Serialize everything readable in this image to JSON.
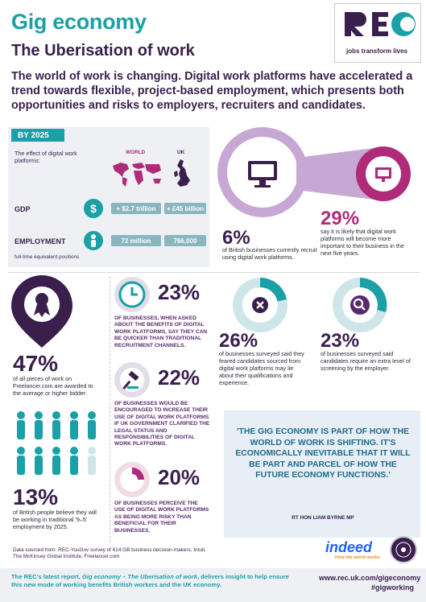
{
  "header": {
    "title": "Gig economy",
    "subtitle": "The Uberisation of work",
    "logo_text": "REC",
    "logo_tagline": "jobs transform lives",
    "intro": "The world of work is changing. Digital work platforms have accelerated a trend towards flexible, project-based employment, which presents both opportunities and risks to employers, recruiters and candidates."
  },
  "by2025": {
    "tag": "BY 2025",
    "effect_label": "The effect of digital work platforms:",
    "col_world": "WORLD",
    "col_uk": "UK",
    "gdp_label": "GDP",
    "gdp_world": "+ $2.7 trillion",
    "gdp_uk": "+ £45 billion",
    "employment_label": "EMPLOYMENT",
    "employment_sub": "full-time equivalent positions",
    "emp_world": "72 million",
    "emp_uk": "766,000"
  },
  "top_right": {
    "pct1": "6%",
    "pct1_text": "of British businesses currently recruit using digital work platforms.",
    "pct2": "29%",
    "pct2_text": "say it is likely that digital work platforms will become more important to their business in the next five years."
  },
  "left_col": {
    "pct1": "47%",
    "pct1_text": "of all pieces of work on Freelancer.com are awarded to the average or higher bidder.",
    "pct2": "13%",
    "pct2_text": "of British people believe they will be working in traditional '9–5' employment by 2025."
  },
  "mid_col": {
    "pct1": "23%",
    "pct1_text": "OF BUSINESSES, WHEN ASKED ABOUT THE BENEFITS OF DIGITAL WORK PLATFORMS, SAY THEY CAN BE QUICKER THAN TRADITIONAL RECRUITMENT CHANNELS.",
    "pct2": "22%",
    "pct2_text": "OF BUSINESSES WOULD BE ENCOURAGED TO INCREASE THEIR USE OF DIGITAL WORK PLATFORMS IF UK GOVERNMENT CLARIFIED THE LEGAL STATUS AND RESPONSIBILITIES OF DIGITAL WORK PLATFORMS.",
    "pct3": "20%",
    "pct3_text": "OF BUSINESSES PERCEIVE THE USE OF DIGITAL WORK PLATFORMS AS BEING MORE RISKY THAN BENEFICIAL FOR THEIR BUSINESSES."
  },
  "right_col": {
    "pct1": "26%",
    "pct1_text": "of businesses surveyed said they feared candidates sourced from digital work platforms may lie about their qualifications and experience.",
    "pct2": "23%",
    "pct2_text": "of businesses surveyed said candidates require an extra level of screening by the employer."
  },
  "quote": {
    "text": "'THE GIG ECONOMY IS PART OF HOW THE WORLD OF WORK IS SHIFTING. IT'S ECONOMICALLY INEVITABLE THAT IT WILL BE PART AND PARCEL OF HOW THE FUTURE ECONOMY FUNCTIONS.'",
    "author": "RT HON LIAM BYRNE MP"
  },
  "sources": "Data sourced from: REC-YouGov survey of 614 GB business decision-makers, Intuit, The McKinsey Global Institute, Freelancer.com",
  "sponsor": {
    "name": "indeed",
    "tagline": "How the world works"
  },
  "footer": {
    "text_pre": "The REC's latest report, ",
    "report_title": "Gig economy – The Uberisation of work",
    "text_post": ", delivers insight to help ensure this new mode of working benefits British workers and the UK economy.",
    "url": "www.rec.uk.com/gigeconomy",
    "hashtag": "#gigworking"
  },
  "colors": {
    "teal": "#1aa0a6",
    "purple": "#5a2a6e",
    "dark_purple": "#3a1f4d",
    "magenta": "#b02a7a"
  }
}
